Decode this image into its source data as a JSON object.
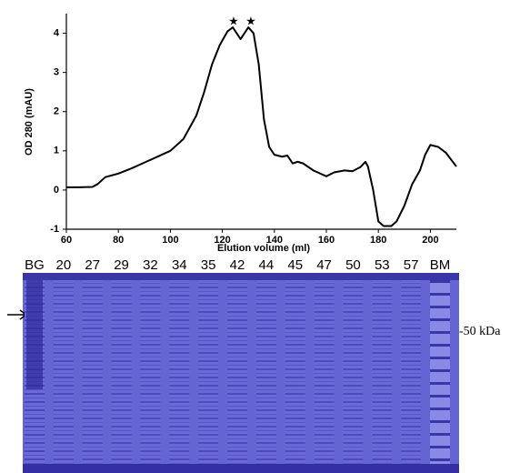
{
  "chart_data": {
    "type": "line",
    "x_label": "Elution volume (ml)",
    "y_label": "OD 280 (mAU)",
    "x": [
      60,
      65,
      70,
      72,
      75,
      80,
      85,
      90,
      95,
      100,
      105,
      110,
      113,
      116,
      119,
      122,
      124,
      126,
      127,
      128,
      130,
      132,
      134,
      136,
      138,
      140,
      143,
      145,
      147,
      149,
      151,
      155,
      160,
      163,
      167,
      170,
      173,
      175,
      176,
      178,
      180,
      182,
      185,
      187,
      190,
      193,
      196,
      198,
      200,
      203,
      206,
      210
    ],
    "series": [
      {
        "color": "#000000",
        "values": [
          0.07,
          0.07,
          0.08,
          0.15,
          0.33,
          0.42,
          0.55,
          0.7,
          0.85,
          1.0,
          1.3,
          1.9,
          2.5,
          3.2,
          3.7,
          4.05,
          4.15,
          3.95,
          3.85,
          3.95,
          4.15,
          4.0,
          3.2,
          1.8,
          1.1,
          0.9,
          0.85,
          0.88,
          0.68,
          0.72,
          0.68,
          0.5,
          0.35,
          0.45,
          0.5,
          0.48,
          0.58,
          0.72,
          0.6,
          0.0,
          -0.8,
          -0.92,
          -0.92,
          -0.8,
          -0.4,
          0.15,
          0.5,
          0.9,
          1.15,
          1.1,
          0.95,
          0.6
        ]
      }
    ],
    "xlim": [
      60,
      210
    ],
    "ylim": [
      -1,
      4.5
    ],
    "xticks": [
      60,
      80,
      100,
      120,
      140,
      160,
      180,
      200
    ],
    "yticks": [
      -1,
      0,
      1,
      2,
      3,
      4
    ]
  },
  "gel": {
    "lanes": [
      "BG",
      "20",
      "27",
      "29",
      "32",
      "34",
      "35",
      "42",
      "44",
      "45",
      "47",
      "50",
      "53",
      "57",
      "BM"
    ],
    "marker_label": "-50 kDa"
  }
}
